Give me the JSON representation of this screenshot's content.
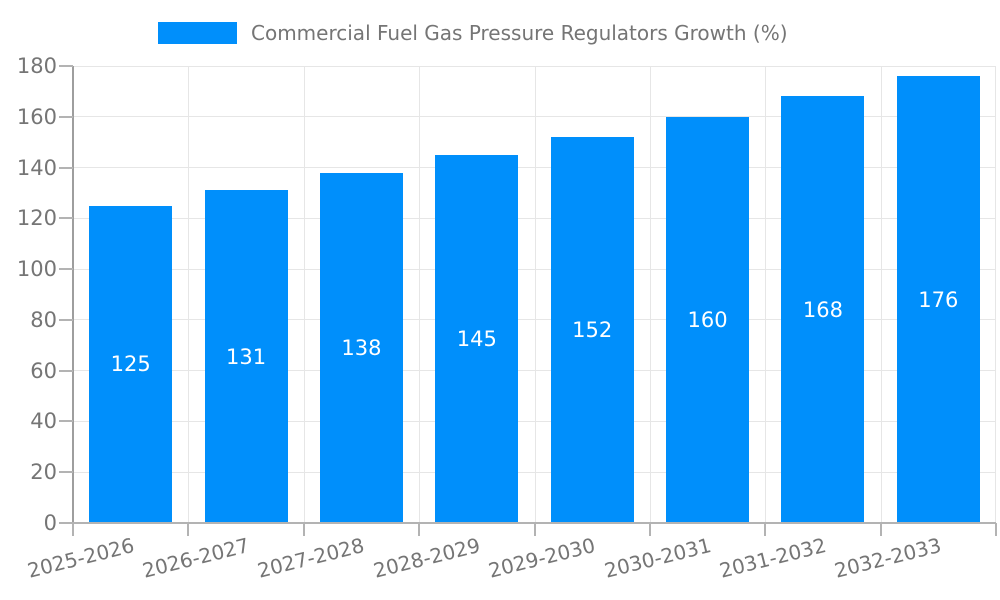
{
  "chart_data": {
    "type": "bar",
    "title": "Commercial Fuel Gas Pressure Regulators Growth (%)",
    "legend": {
      "position": "top",
      "entries": [
        "Commercial Fuel Gas Pressure Regulators Growth (%)"
      ]
    },
    "categories": [
      "2025-2026",
      "2026-2027",
      "2027-2028",
      "2028-2029",
      "2029-2030",
      "2030-2031",
      "2031-2032",
      "2032-2033"
    ],
    "values": [
      125,
      131,
      138,
      145,
      152,
      160,
      168,
      176
    ],
    "bar_value_labels": [
      "125",
      "131",
      "138",
      "145",
      "152",
      "160",
      "168",
      "176"
    ],
    "xlabel": "",
    "ylabel": "",
    "ylim": [
      0,
      180
    ],
    "yticks": [
      0,
      20,
      40,
      60,
      80,
      100,
      120,
      140,
      160,
      180
    ],
    "grid": true,
    "x_label_rotation_deg": -14,
    "colors": {
      "bar": "#008FFB",
      "bar_label": "#ffffff",
      "axis_text": "#757575",
      "grid_line": "#e6e6e6",
      "axis_line_y": "#9e9e9e",
      "axis_line_x": "#b3b3b3",
      "tick_line": "#b3b3b3",
      "background": "#ffffff"
    }
  }
}
